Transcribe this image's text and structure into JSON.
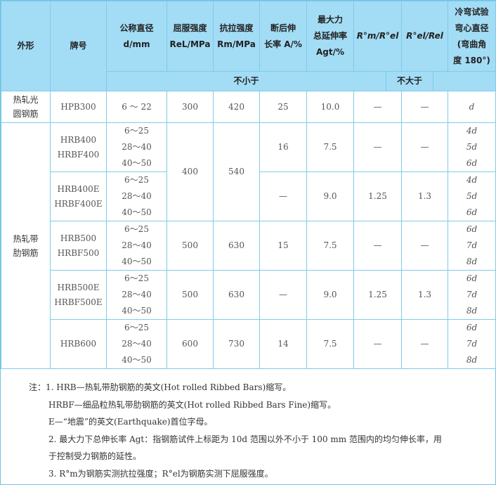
{
  "header": {
    "shape": "外形",
    "grade": "牌号",
    "diameter": [
      "公称直径",
      "d/mm"
    ],
    "yield": [
      "屈服强度",
      "ReL/MPa"
    ],
    "tensile": [
      "抗拉强度",
      "Rm/MPa"
    ],
    "elong": [
      "断后伸",
      "长率 A/%"
    ],
    "agt": [
      "最大力",
      "总延伸率",
      "Agt/%"
    ],
    "ratio1": "R°m/R°el",
    "ratio2": "R°el/Rel",
    "bend": [
      "冷弯试验",
      "弯心直径",
      "(弯曲角",
      "度 180°)"
    ],
    "not_less": "不小于",
    "not_more": "不大于"
  },
  "rows": [
    {
      "shape": "热轧光圆钢筋",
      "grades": [
        "HPB300"
      ],
      "d": [
        "6 ～ 22"
      ],
      "rel": "300",
      "rm": "420",
      "a": "25",
      "agt": "10.0",
      "r1": "—",
      "r2": "—",
      "bend": [
        "d"
      ]
    },
    {
      "shape": "热轧带肋钢筋",
      "grades": [
        "HRB400",
        "HRBF400"
      ],
      "d": [
        "6～25",
        "28～40",
        "40～50"
      ],
      "rel": "400",
      "rm": "540",
      "a": "16",
      "agt": "7.5",
      "r1": "—",
      "r2": "—",
      "bend": [
        "4d",
        "5d",
        "6d"
      ]
    },
    {
      "grades": [
        "HRB400E",
        "HRBF400E"
      ],
      "d": [
        "6～25",
        "28～40",
        "40～50"
      ],
      "a": "—",
      "agt": "9.0",
      "r1": "1.25",
      "r2": "1.3",
      "bend": [
        "4d",
        "5d",
        "6d"
      ]
    },
    {
      "grades": [
        "HRB500",
        "HRBF500"
      ],
      "d": [
        "6～25",
        "28～40",
        "40～50"
      ],
      "rel": "500",
      "rm": "630",
      "a": "15",
      "agt": "7.5",
      "r1": "—",
      "r2": "—",
      "bend": [
        "6d",
        "7d",
        "8d"
      ]
    },
    {
      "grades": [
        "HRB500E",
        "HRBF500E"
      ],
      "d": [
        "6～25",
        "28～40",
        "40～50"
      ],
      "rel": "500",
      "rm": "630",
      "a": "—",
      "agt": "9.0",
      "r1": "1.25",
      "r2": "1.3",
      "bend": [
        "6d",
        "7d",
        "8d"
      ]
    },
    {
      "grades": [
        "HRB600"
      ],
      "d": [
        "6～25",
        "28～40",
        "40～50"
      ],
      "rel": "600",
      "rm": "730",
      "a": "14",
      "agt": "7.5",
      "r1": "—",
      "r2": "—",
      "bend": [
        "6d",
        "7d",
        "8d"
      ]
    }
  ],
  "notes": [
    "注：1. HRB—热轧带肋钢筋的英文(Hot rolled Ribbed Bars)缩写。",
    "HRBF—细品粒热轧带肋钢筋的英文(Hot rolled Ribbed Bars Fine)缩写。",
    "E—“地震”的英文(Earthquake)首位字母。",
    "2. 最大力下总伸长率 Agt：指钢筋试件上标距为 10d 范围以外不小于 100 mm 范围内的均匀伸长率，用",
    "于控制受力钢筋的延性。",
    "3. R°m为钢筋实测抗拉强度；R°el为钢筋实测下屈服强度。"
  ]
}
